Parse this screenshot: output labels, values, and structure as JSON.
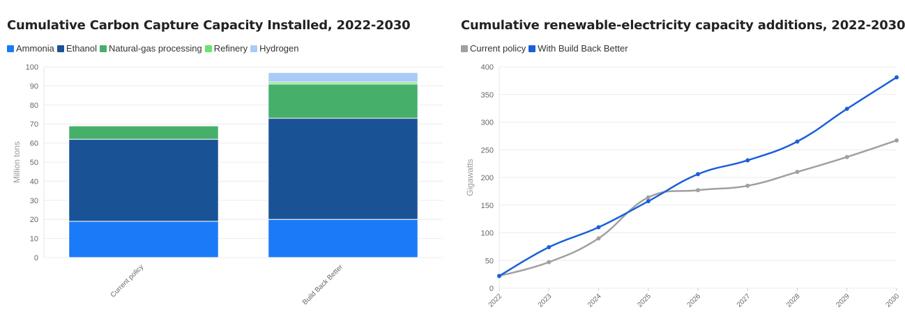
{
  "chart_data": [
    {
      "type": "bar",
      "stacked": true,
      "title": "Cumulative Carbon Capture Capacity Installed, 2022-2030",
      "ylabel": "Million tons",
      "xlabel": "",
      "ylim": [
        0,
        100
      ],
      "yticks": [
        0,
        10,
        20,
        30,
        40,
        50,
        60,
        70,
        80,
        90,
        100
      ],
      "categories": [
        "Current policy",
        "Build Back Better"
      ],
      "legend_position": "top-left",
      "grid": true,
      "series": [
        {
          "name": "Ammonia",
          "color": "#1a7af8",
          "values": [
            19,
            20
          ]
        },
        {
          "name": "Ethanol",
          "color": "#1a5296",
          "values": [
            43,
            53
          ]
        },
        {
          "name": "Natural-gas processing",
          "color": "#46b06a",
          "values": [
            7,
            18
          ]
        },
        {
          "name": "Refinery",
          "color": "#6ee06e",
          "values": [
            0,
            1
          ]
        },
        {
          "name": "Hydrogen",
          "color": "#a9ccf6",
          "values": [
            0,
            5
          ]
        }
      ]
    },
    {
      "type": "line",
      "title": "Cumulative renewable-electricity capacity additions, 2022-2030",
      "ylabel": "Gigawatts",
      "xlabel": "",
      "ylim": [
        0,
        400
      ],
      "yticks": [
        0,
        50,
        100,
        150,
        200,
        250,
        300,
        350,
        400
      ],
      "x": [
        "2022",
        "2023",
        "2024",
        "2025",
        "2026",
        "2027",
        "2028",
        "2029",
        "2030"
      ],
      "legend_position": "top-left",
      "grid": true,
      "series": [
        {
          "name": "Current policy",
          "color": "#a0a0a0",
          "values": [
            22,
            47,
            90,
            164,
            177,
            185,
            210,
            237,
            267
          ]
        },
        {
          "name": "With Build Back Better",
          "color": "#1a5fd8",
          "values": [
            22,
            74,
            110,
            157,
            206,
            231,
            265,
            324,
            381
          ]
        }
      ]
    }
  ]
}
